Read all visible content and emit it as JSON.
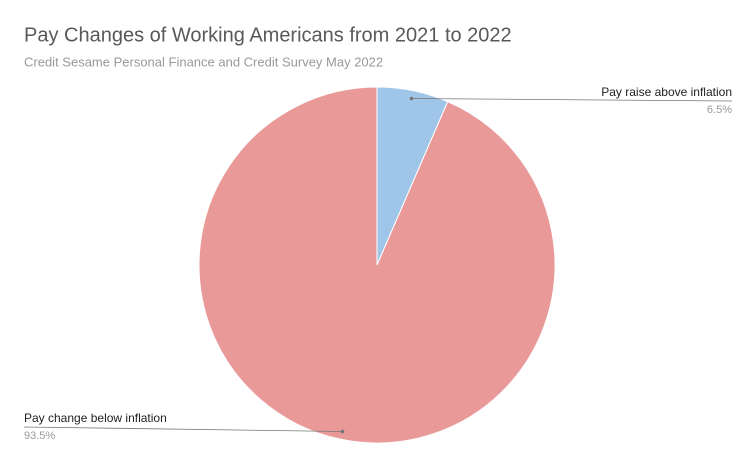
{
  "chart_data": {
    "type": "pie",
    "title": "Pay Changes of Working Americans from 2021 to 2022",
    "subtitle": "Credit Sesame Personal Finance and Credit Survey May 2022",
    "categories": [
      "Pay raise above inflation",
      "Pay change below inflation"
    ],
    "values": [
      6.5,
      93.5
    ],
    "value_labels": [
      "6.5%",
      "93.5%"
    ],
    "colors": [
      "#9fc5e8",
      "#ea9999"
    ]
  }
}
